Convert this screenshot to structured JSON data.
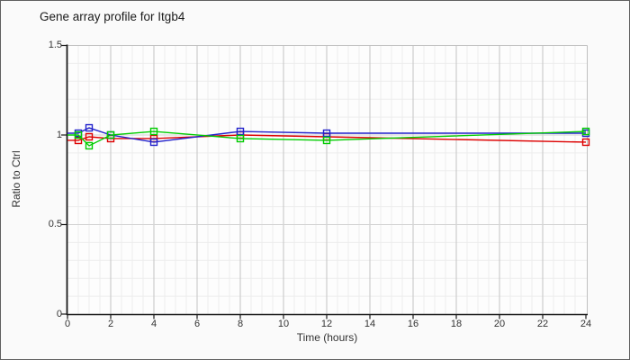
{
  "window": {
    "background_color": "#fafafa",
    "border_color": "#5f5f5f"
  },
  "chart_data": {
    "type": "line",
    "title": "Gene array profile for Itgb4",
    "xlabel": "Time (hours)",
    "ylabel": "Ratio to Ctrl",
    "x": [
      0.5,
      1,
      2,
      4,
      8,
      12,
      24
    ],
    "series": [
      {
        "name": "red",
        "color": "#dd0000",
        "values": [
          0.97,
          0.99,
          0.98,
          0.98,
          1.0,
          0.99,
          0.96
        ]
      },
      {
        "name": "blue",
        "color": "#2222cc",
        "values": [
          1.01,
          1.04,
          1.0,
          0.96,
          1.02,
          1.01,
          1.01
        ]
      },
      {
        "name": "green",
        "color": "#00cc00",
        "values": [
          1.0,
          0.94,
          1.0,
          1.02,
          0.98,
          0.97,
          1.02
        ]
      }
    ],
    "xlim": [
      0,
      24
    ],
    "ylim": [
      0,
      1.5
    ],
    "x_major_ticks": [
      0,
      2,
      4,
      6,
      8,
      10,
      12,
      14,
      16,
      18,
      20,
      22,
      24
    ],
    "x_minor_step": 0.5,
    "y_major_ticks": [
      0,
      0.5,
      1,
      1.5
    ],
    "y_tick_labels": [
      "0",
      "0.5",
      "1",
      "1.5"
    ],
    "y_minor_step": 0.1,
    "grid": true,
    "legend_position": "none",
    "marker": "open-square",
    "colors": {
      "axis": "#1a1a1a",
      "grid_minor": "#ededed",
      "grid_major_h": "#d4d4d4",
      "grid_major_v": "#c4c4c4",
      "frame": "#c0c0c0",
      "plot_background": "#fdfdfd",
      "text": "#333333",
      "title_text": "#1a1a1a"
    }
  }
}
